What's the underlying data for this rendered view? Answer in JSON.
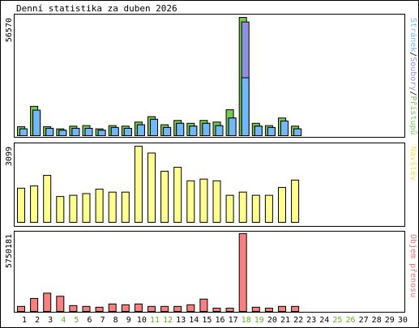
{
  "title": "Denní statistika za duben 2026",
  "colors": {
    "hits": "#78c850",
    "files": "#9090e0",
    "pages": "#70b8f8",
    "visits": "#ffff90",
    "visits_text": "#f0e050",
    "volume": "#f88080",
    "volume_text": "#f07070",
    "weekend": "#5cb820",
    "weekday": "#000000",
    "separator": "#000000",
    "panel_border": "#000000"
  },
  "chart_data": [
    {
      "type": "bar",
      "name": "hits-files-pages",
      "max_label": "56570",
      "ymax": 56570,
      "right_label_parts": [
        {
          "text": "Stránek",
          "color_key": "pages"
        },
        {
          "text": "/",
          "color_key": "separator"
        },
        {
          "text": "Soubory",
          "color_key": "files"
        },
        {
          "text": "/",
          "color_key": "separator"
        },
        {
          "text": "Přístupů",
          "color_key": "hits"
        }
      ],
      "series": [
        {
          "color_key": "hits",
          "values": [
            4290,
            14000,
            4290,
            3250,
            4550,
            4800,
            3250,
            4800,
            4550,
            6500,
            9100,
            5200,
            7280,
            5900,
            7280,
            6500,
            12400,
            56570,
            5900,
            4800,
            8450,
            4550
          ]
        },
        {
          "color_key": "files",
          "values": [
            3250,
            12200,
            3500,
            2600,
            3500,
            3500,
            2600,
            3900,
            3500,
            5200,
            7800,
            3900,
            5900,
            4550,
            5900,
            4800,
            8450,
            54400,
            4550,
            3900,
            7000,
            3250
          ]
        },
        {
          "color_key": "pages",
          "values": [
            3250,
            12200,
            3500,
            2600,
            3500,
            3500,
            2600,
            3900,
            3500,
            5200,
            7800,
            3900,
            5900,
            4550,
            5900,
            4800,
            8450,
            27700,
            4550,
            3900,
            7000,
            3250
          ]
        }
      ]
    },
    {
      "type": "bar",
      "name": "visits",
      "max_label": "3099",
      "ymax": 3099,
      "right_label_parts": [
        {
          "text": "Návštěv",
          "color_key": "visits_text"
        }
      ],
      "series": [
        {
          "color_key": "visits",
          "values": [
            1390,
            1480,
            1910,
            1050,
            1100,
            1170,
            1350,
            1230,
            1230,
            3099,
            2820,
            2080,
            2240,
            1690,
            1760,
            1690,
            1100,
            1230,
            1100,
            1100,
            1420,
            1720
          ]
        }
      ]
    },
    {
      "type": "bar",
      "name": "volume",
      "max_label": "5750181",
      "ymax": 5750181,
      "right_label_parts": [
        {
          "text": "Objem přenosu",
          "color_key": "volume_text"
        }
      ],
      "series": [
        {
          "color_key": "volume",
          "values": [
            370000,
            960000,
            1350000,
            1120000,
            430000,
            370000,
            310000,
            550000,
            490000,
            550000,
            370000,
            370000,
            370000,
            490000,
            910000,
            240000,
            240000,
            5750181,
            310000,
            240000,
            370000,
            370000
          ]
        }
      ]
    }
  ],
  "days": [
    {
      "label": "1",
      "weekend": false
    },
    {
      "label": "2",
      "weekend": false
    },
    {
      "label": "3",
      "weekend": false
    },
    {
      "label": "4",
      "weekend": true
    },
    {
      "label": "5",
      "weekend": true
    },
    {
      "label": "6",
      "weekend": false
    },
    {
      "label": "7",
      "weekend": false
    },
    {
      "label": "8",
      "weekend": false
    },
    {
      "label": "9",
      "weekend": false
    },
    {
      "label": "10",
      "weekend": false
    },
    {
      "label": "11",
      "weekend": true
    },
    {
      "label": "12",
      "weekend": true
    },
    {
      "label": "13",
      "weekend": false
    },
    {
      "label": "14",
      "weekend": false
    },
    {
      "label": "15",
      "weekend": false
    },
    {
      "label": "16",
      "weekend": false
    },
    {
      "label": "17",
      "weekend": false
    },
    {
      "label": "18",
      "weekend": true
    },
    {
      "label": "19",
      "weekend": true
    },
    {
      "label": "20",
      "weekend": false
    },
    {
      "label": "21",
      "weekend": false
    },
    {
      "label": "22",
      "weekend": false
    },
    {
      "label": "23",
      "weekend": false
    },
    {
      "label": "24",
      "weekend": false
    },
    {
      "label": "25",
      "weekend": true
    },
    {
      "label": "26",
      "weekend": true
    },
    {
      "label": "27",
      "weekend": false
    },
    {
      "label": "28",
      "weekend": false
    },
    {
      "label": "29",
      "weekend": false
    },
    {
      "label": "30",
      "weekend": false
    }
  ]
}
